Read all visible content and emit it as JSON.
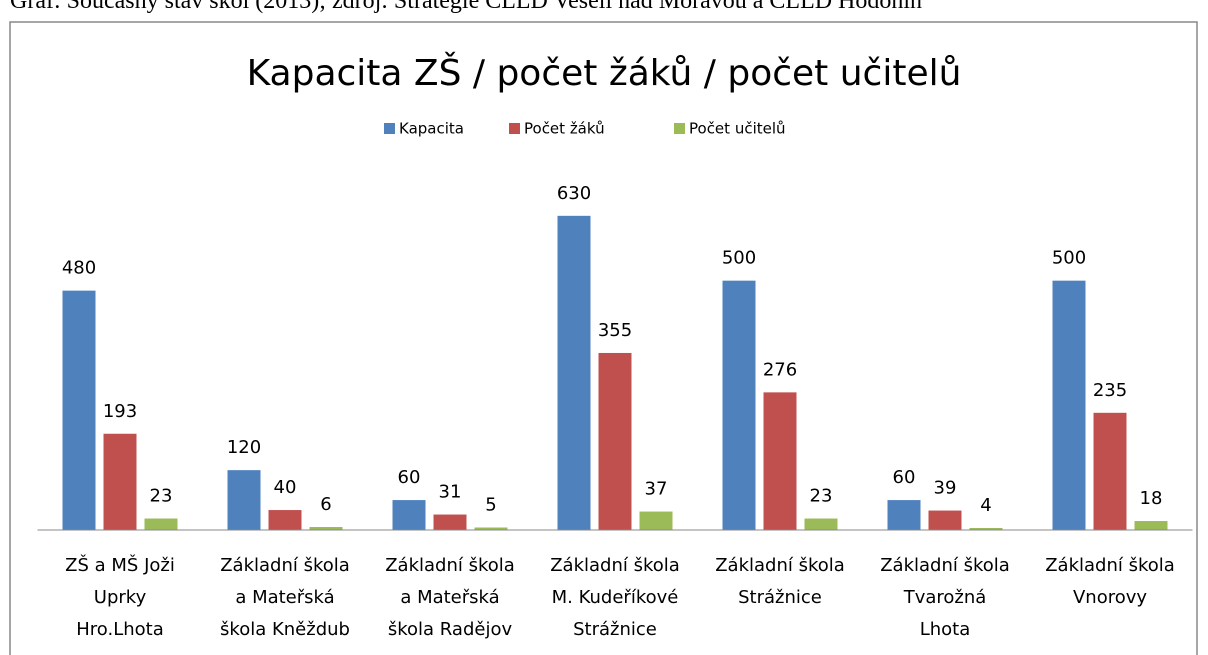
{
  "caption": "Graf: Současný stav škol (2013); zdroj: Strategie CLLD Veselí nad Moravou a CLLD Hodonín",
  "chart_data": {
    "type": "bar",
    "title": "Kapacita ZŠ / počet žáků / počet učitelů",
    "categories": [
      "ZŠ a MŠ Joži\nUprky\nHro.Lhota",
      "Základní škola\na Mateřská\nškola Kněždub",
      "Základní škola\na Mateřská\nškola Radějov",
      "Základní škola\nM. Kudeříkové\nStrážnice",
      "Základní škola\nStrážnice",
      "Základní škola\nTvarožná\nLhota",
      "Základní škola\nVnorovy"
    ],
    "series": [
      {
        "name": "Kapacita",
        "color": "#4f81bd",
        "values": [
          480,
          120,
          60,
          630,
          500,
          60,
          500
        ]
      },
      {
        "name": "Počet žáků",
        "color": "#c0504d",
        "values": [
          193,
          40,
          31,
          355,
          276,
          39,
          235
        ]
      },
      {
        "name": "Počet učitelů",
        "color": "#9bbb59",
        "values": [
          23,
          6,
          5,
          37,
          23,
          4,
          18
        ]
      }
    ],
    "ylim": [
      0,
      760
    ],
    "legend": "top"
  }
}
